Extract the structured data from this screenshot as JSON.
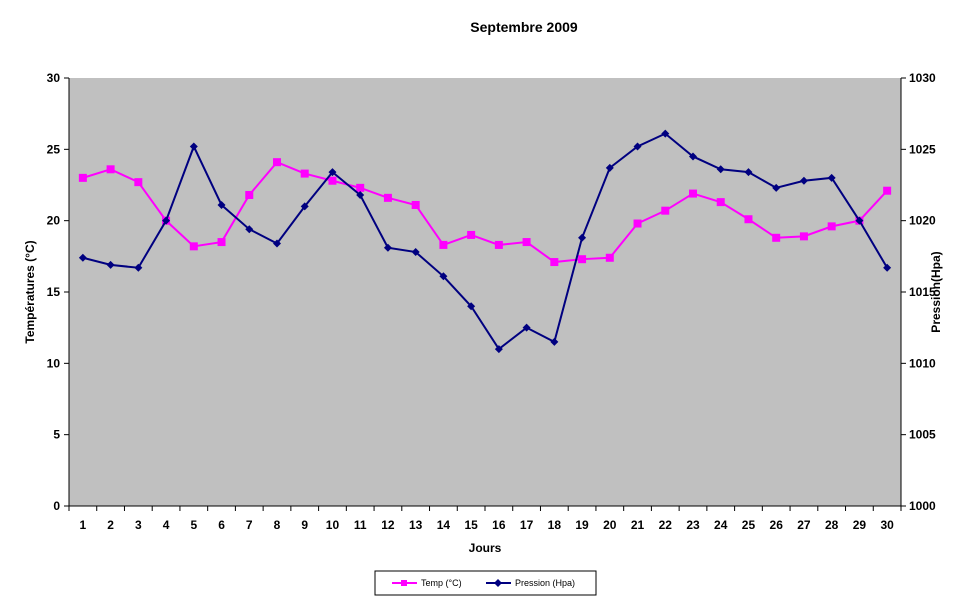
{
  "chart_data": {
    "type": "line",
    "title": "Septembre 2009",
    "xlabel": "Jours",
    "ylabel_left": "Températures  (°C)",
    "ylabel_right": "Pression(Hpa)",
    "x": [
      1,
      2,
      3,
      4,
      5,
      6,
      7,
      8,
      9,
      10,
      11,
      12,
      13,
      14,
      15,
      16,
      17,
      18,
      19,
      20,
      21,
      22,
      23,
      24,
      25,
      26,
      27,
      28,
      29,
      30
    ],
    "ylim_left": [
      0,
      30
    ],
    "yticks_left": [
      0,
      5,
      10,
      15,
      20,
      25,
      30
    ],
    "ylim_right": [
      1000,
      1030
    ],
    "yticks_right": [
      1000,
      1005,
      1010,
      1015,
      1020,
      1025,
      1030
    ],
    "grid": false,
    "legend_position": "bottom",
    "plot_background": "#c0c0c0",
    "series": [
      {
        "name": "Temp (°C)",
        "axis": "left",
        "color": "#ff00ff",
        "marker": "square",
        "values": [
          23.0,
          23.6,
          22.7,
          20.0,
          18.2,
          18.5,
          21.8,
          24.1,
          23.3,
          22.8,
          22.3,
          21.6,
          21.1,
          18.3,
          19.0,
          18.3,
          18.5,
          17.1,
          17.3,
          17.4,
          19.8,
          20.7,
          21.9,
          21.3,
          20.1,
          18.8,
          18.9,
          19.6,
          20.0,
          22.1
        ]
      },
      {
        "name": "Pression (Hpa)",
        "axis": "right",
        "color": "#000080",
        "marker": "diamond",
        "values": [
          1017.4,
          1016.9,
          1016.7,
          1020.0,
          1025.2,
          1021.1,
          1019.4,
          1018.4,
          1021.0,
          1023.4,
          1021.8,
          1018.1,
          1017.8,
          1016.1,
          1014.0,
          1011.0,
          1012.5,
          1011.5,
          1018.8,
          1023.7,
          1025.2,
          1026.1,
          1024.5,
          1023.6,
          1023.4,
          1022.3,
          1022.8,
          1023.0,
          1020.0,
          1016.7
        ]
      }
    ]
  }
}
